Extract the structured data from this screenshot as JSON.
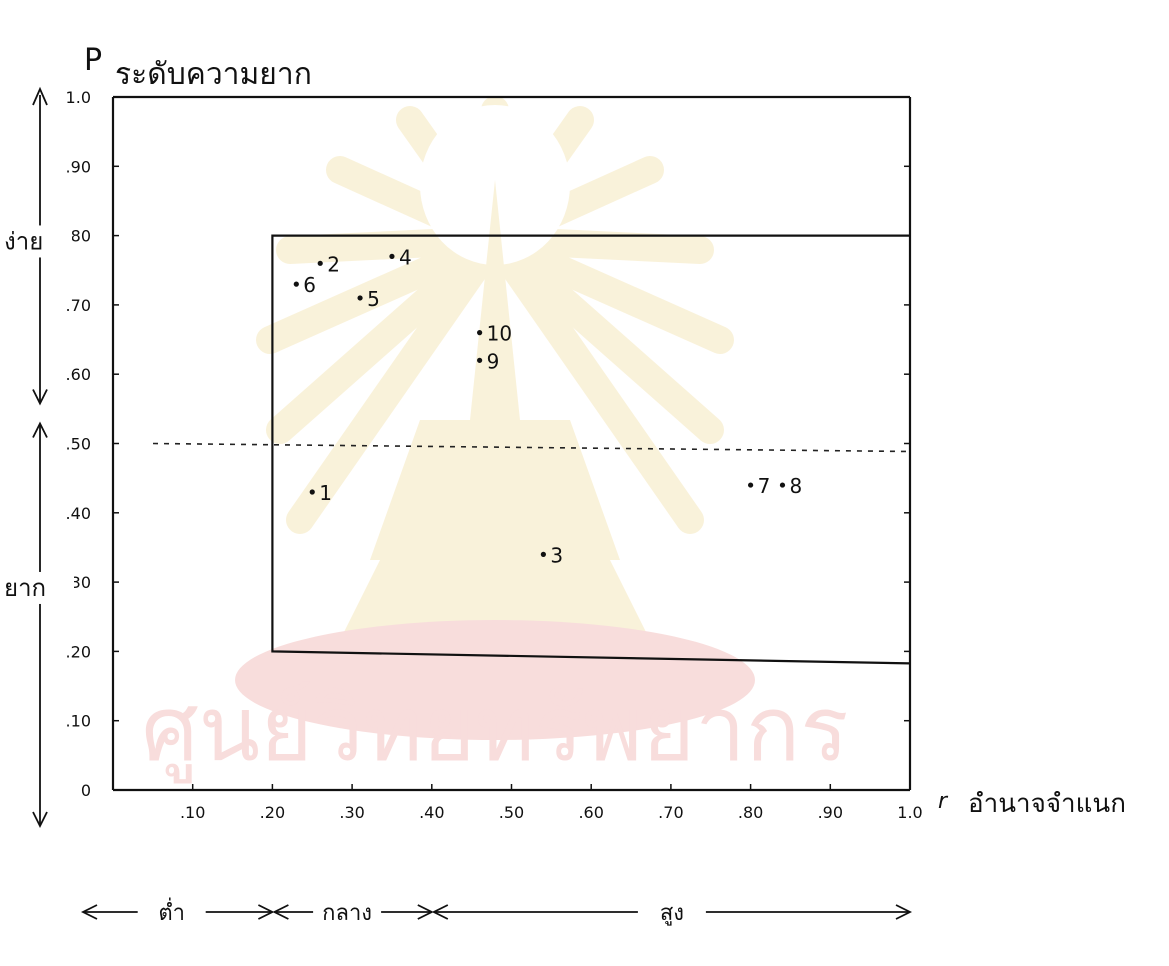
{
  "chart_data": {
    "type": "scatter",
    "y_symbol": "P",
    "ylabel": "ระดับความยาก",
    "x_symbol": "r",
    "xlabel": "อำนาจจำแนก",
    "xlim": [
      0,
      1.0
    ],
    "ylim": [
      0,
      1.0
    ],
    "x_tick_labels": [
      ".10",
      ".20",
      ".30",
      ".40",
      ".50",
      ".60",
      ".70",
      ".80",
      ".90",
      "1.0"
    ],
    "y_tick_labels": [
      "0",
      ".10",
      ".20",
      ".30",
      ".40",
      ".50",
      ".60",
      ".70",
      ".80",
      ".90",
      "1.0"
    ],
    "x_ticks": [
      0.1,
      0.2,
      0.3,
      0.4,
      0.5,
      0.6,
      0.7,
      0.8,
      0.9,
      1.0
    ],
    "y_ticks": [
      0,
      0.1,
      0.2,
      0.3,
      0.4,
      0.5,
      0.6,
      0.7,
      0.8,
      0.9,
      1.0
    ],
    "points": [
      {
        "label": "1",
        "x": 0.25,
        "y": 0.43
      },
      {
        "label": "2",
        "x": 0.26,
        "y": 0.76
      },
      {
        "label": "3",
        "x": 0.54,
        "y": 0.34
      },
      {
        "label": "4",
        "x": 0.35,
        "y": 0.77
      },
      {
        "label": "5",
        "x": 0.31,
        "y": 0.71
      },
      {
        "label": "6",
        "x": 0.23,
        "y": 0.73
      },
      {
        "label": "7",
        "x": 0.8,
        "y": 0.44
      },
      {
        "label": "8",
        "x": 0.84,
        "y": 0.44
      },
      {
        "label": "9",
        "x": 0.46,
        "y": 0.62
      },
      {
        "label": "10",
        "x": 0.46,
        "y": 0.66
      }
    ],
    "reference_line_y": 0.5,
    "acceptance_region": {
      "x": [
        0.2,
        1.0
      ],
      "y": [
        0.2,
        0.8
      ]
    },
    "y_regions": [
      {
        "label": "ง่าย",
        "range": [
          0.5,
          1.0
        ]
      },
      {
        "label": "ยาก",
        "range": [
          0.0,
          0.5
        ]
      }
    ],
    "x_regions": [
      {
        "label": "ต่ำ",
        "range": [
          0.0,
          0.2
        ]
      },
      {
        "label": "กลาง",
        "range": [
          0.2,
          0.4
        ]
      },
      {
        "label": "สูง",
        "range": [
          0.4,
          1.0
        ]
      }
    ]
  }
}
